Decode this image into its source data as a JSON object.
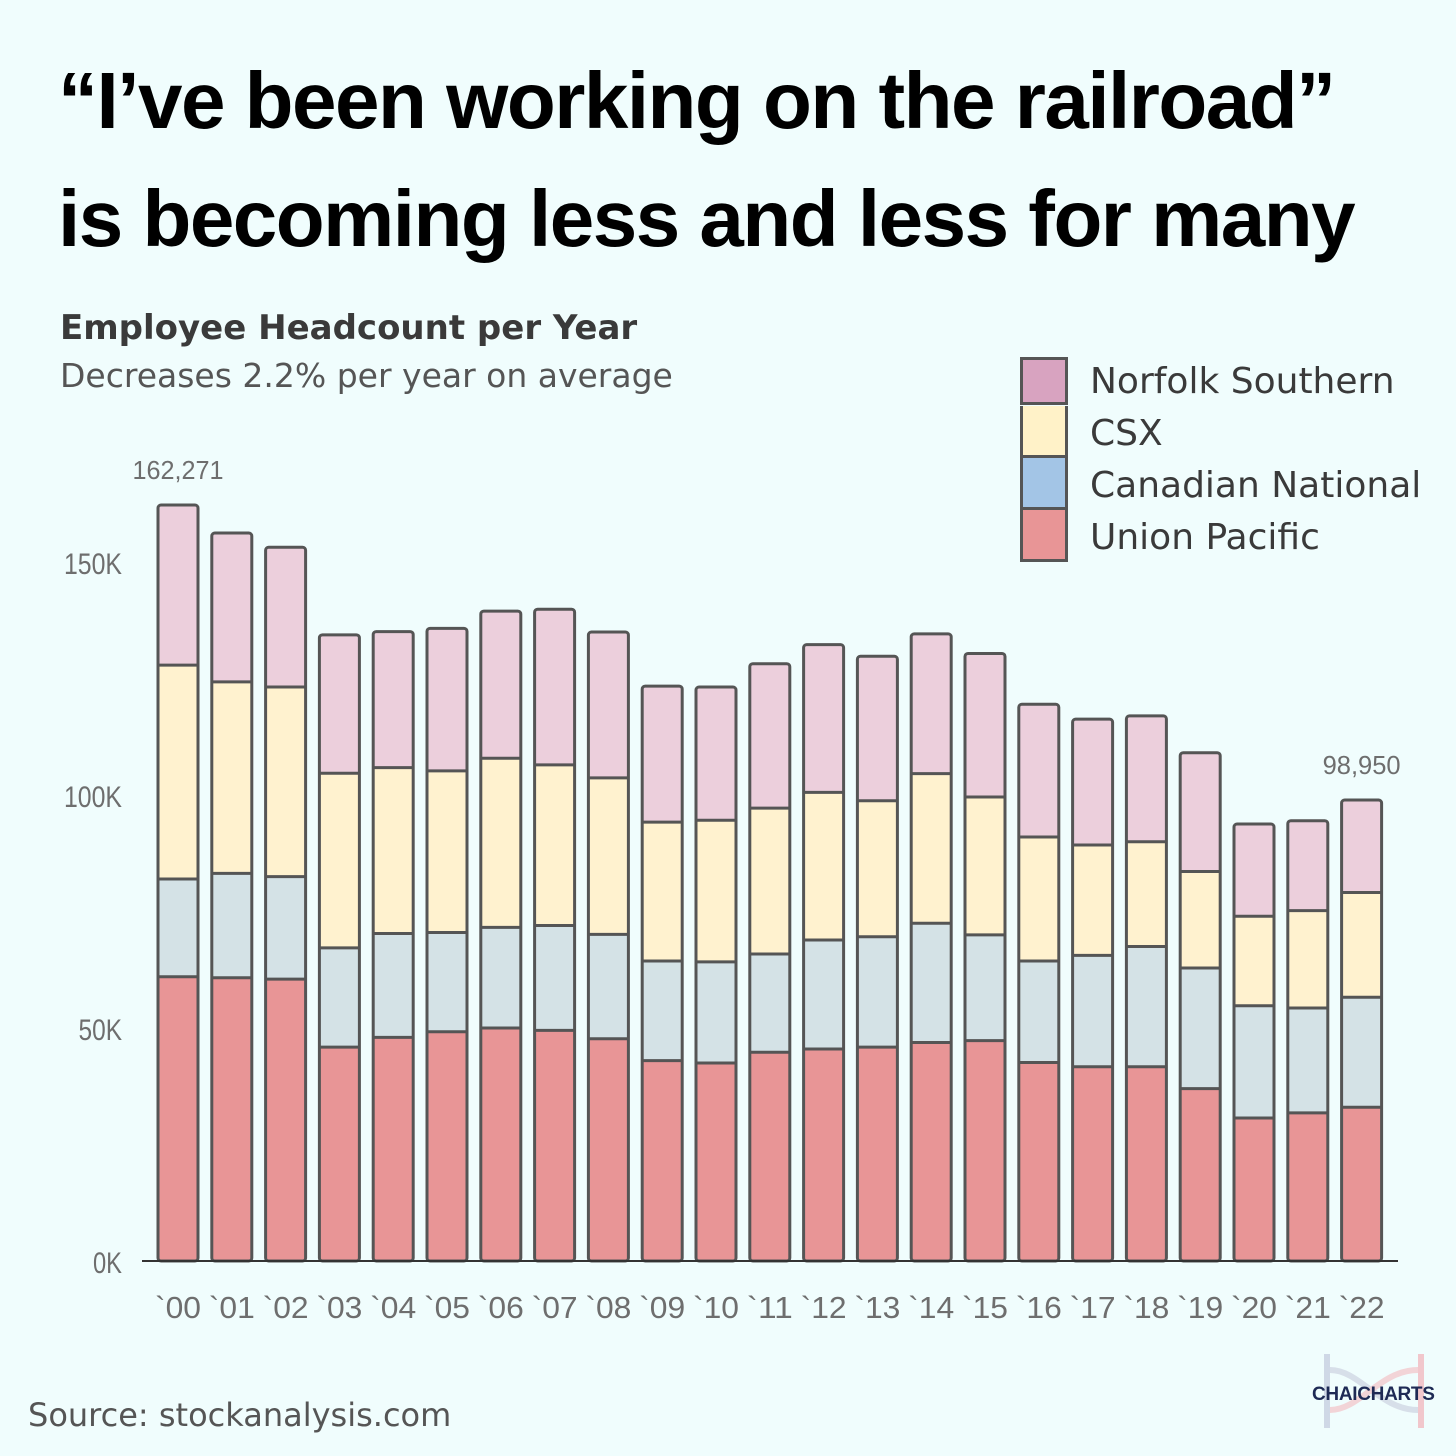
{
  "headline": {
    "line1": "“I’ve been working on the railroad”",
    "line2": "is becoming less and less for many"
  },
  "chart_title": "Employee Headcount per Year",
  "chart_subtitle": "Decreases 2.2% per year on average",
  "source": "Source: stockanalysis.com",
  "brand": "CHAICHARTS",
  "colors": {
    "norfolk_southern": "#eccfdc",
    "csx": "#fff2cf",
    "canadian_national": "#d4e2e6",
    "union_pacific": "#e89596",
    "bar_outline": "#555555",
    "axis_text": "#6e6e6e",
    "background": "#f0fdfd"
  },
  "legend": [
    {
      "name": "Norfolk Southern",
      "color": "#d8a3c0"
    },
    {
      "name": "CSX",
      "color": "#fff2c8"
    },
    {
      "name": "Canadian National",
      "color": "#a3c5e6"
    },
    {
      "name": "Union Pacific",
      "color": "#e89596"
    }
  ],
  "chart_data": {
    "type": "bar",
    "stacked": true,
    "title": "Employee Headcount per Year",
    "subtitle": "Decreases 2.2% per year on average",
    "xlabel": "",
    "ylabel": "",
    "ylim": [
      0,
      162271
    ],
    "yticks": [
      0,
      50000,
      100000,
      150000
    ],
    "ytick_labels": [
      "0K",
      "50K",
      "100K",
      "150K"
    ],
    "categories": [
      "`00",
      "`01",
      "`02",
      "`03",
      "`04",
      "`05",
      "`06",
      "`07",
      "`08",
      "`09",
      "`10",
      "`11",
      "`12",
      "`13",
      "`14",
      "`15",
      "`16",
      "`17",
      "`18",
      "`19",
      "`20",
      "`21",
      "`22"
    ],
    "series": [
      {
        "name": "Union Pacific",
        "color": "#e89596",
        "values": [
          61000,
          60800,
          60500,
          45900,
          48000,
          49200,
          50000,
          49500,
          47700,
          43000,
          42500,
          44800,
          45500,
          45900,
          46900,
          47300,
          42600,
          41700,
          41700,
          37000,
          30700,
          31800,
          33000
        ]
      },
      {
        "name": "Canadian National",
        "color": "#d4e2e6",
        "values": [
          21000,
          22400,
          22000,
          21300,
          22300,
          21300,
          21600,
          22500,
          22400,
          21400,
          21700,
          21100,
          23400,
          23700,
          25600,
          22700,
          21800,
          23900,
          25800,
          25900,
          24100,
          22500,
          23600
        ]
      },
      {
        "name": "CSX",
        "color": "#fff2cf",
        "values": [
          45900,
          41100,
          40700,
          37500,
          35600,
          34700,
          36300,
          34500,
          33600,
          29800,
          30400,
          31300,
          31700,
          29200,
          32100,
          29600,
          26600,
          23700,
          22500,
          20700,
          19200,
          20900,
          22500
        ]
      },
      {
        "name": "Norfolk Southern",
        "color": "#eccfdc",
        "values": [
          34371,
          31950,
          30000,
          29700,
          29200,
          30600,
          31600,
          33400,
          31300,
          29200,
          28600,
          31000,
          31700,
          31000,
          30000,
          30800,
          28500,
          27000,
          27000,
          25500,
          19800,
          19300,
          19850
        ]
      }
    ],
    "annotations": [
      {
        "category": "`00",
        "text": "162,271"
      },
      {
        "category": "`22",
        "text": "98,950"
      }
    ],
    "legend_position": "top-right",
    "grid": false
  }
}
